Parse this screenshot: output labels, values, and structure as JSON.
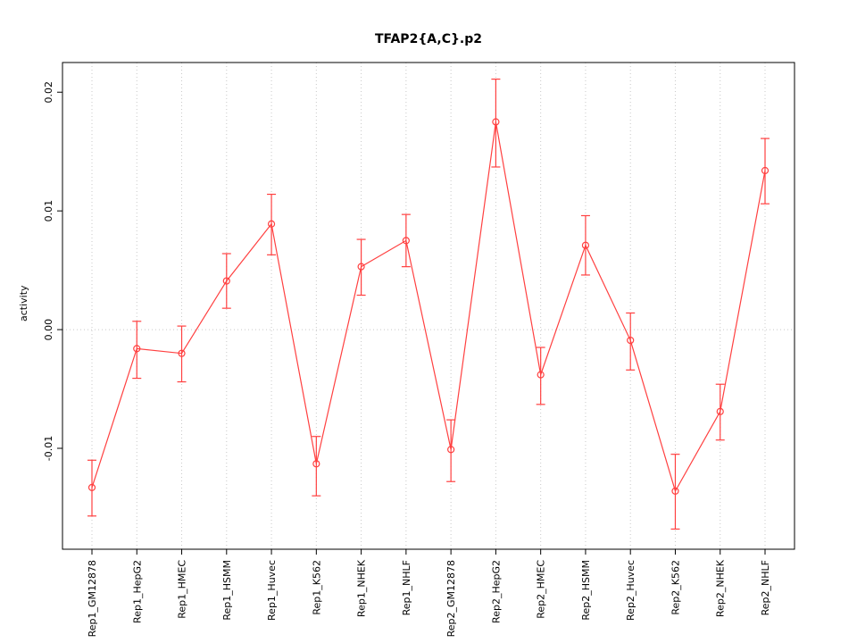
{
  "chart_data": {
    "type": "line",
    "title": "TFAP2{A,C}.p2",
    "xlabel": "",
    "ylabel": "activity",
    "ylim": [
      -0.0185,
      0.0225
    ],
    "y_ticks": [
      -0.01,
      0.0,
      0.01,
      0.02
    ],
    "y_tick_labels": [
      "-0.01",
      "0.00",
      "0.01",
      "0.02"
    ],
    "grid": "dotted vertical at each category, dotted horizontal at zero",
    "legend_position": "none",
    "series_color": "#ff4040",
    "grid_color": "#c8c8c8",
    "categories": [
      "Rep1_GM12878",
      "Rep1_HepG2",
      "Rep1_HMEC",
      "Rep1_HSMM",
      "Rep1_Huvec",
      "Rep1_K562",
      "Rep1_NHEK",
      "Rep1_NHLF",
      "Rep2_GM12878",
      "Rep2_HepG2",
      "Rep2_HMEC",
      "Rep2_HSMM",
      "Rep2_Huvec",
      "Rep2_K562",
      "Rep2_NHEK",
      "Rep2_NHLF"
    ],
    "values": [
      -0.0133,
      -0.0016,
      -0.002,
      0.0041,
      0.0089,
      -0.0113,
      0.0053,
      0.0075,
      -0.0101,
      0.0175,
      -0.0038,
      0.0071,
      -0.0009,
      -0.0136,
      -0.0069,
      0.0134
    ],
    "err_lo": [
      -0.0157,
      -0.0041,
      -0.0044,
      0.0018,
      0.0063,
      -0.014,
      0.0029,
      0.0053,
      -0.0128,
      0.0137,
      -0.0063,
      0.0046,
      -0.0034,
      -0.0168,
      -0.0093,
      0.0106
    ],
    "err_hi": [
      -0.011,
      0.0007,
      0.0003,
      0.0064,
      0.0114,
      -0.009,
      0.0076,
      0.0097,
      -0.0076,
      0.0211,
      -0.0015,
      0.0096,
      0.0014,
      -0.0105,
      -0.0046,
      0.0161
    ]
  }
}
